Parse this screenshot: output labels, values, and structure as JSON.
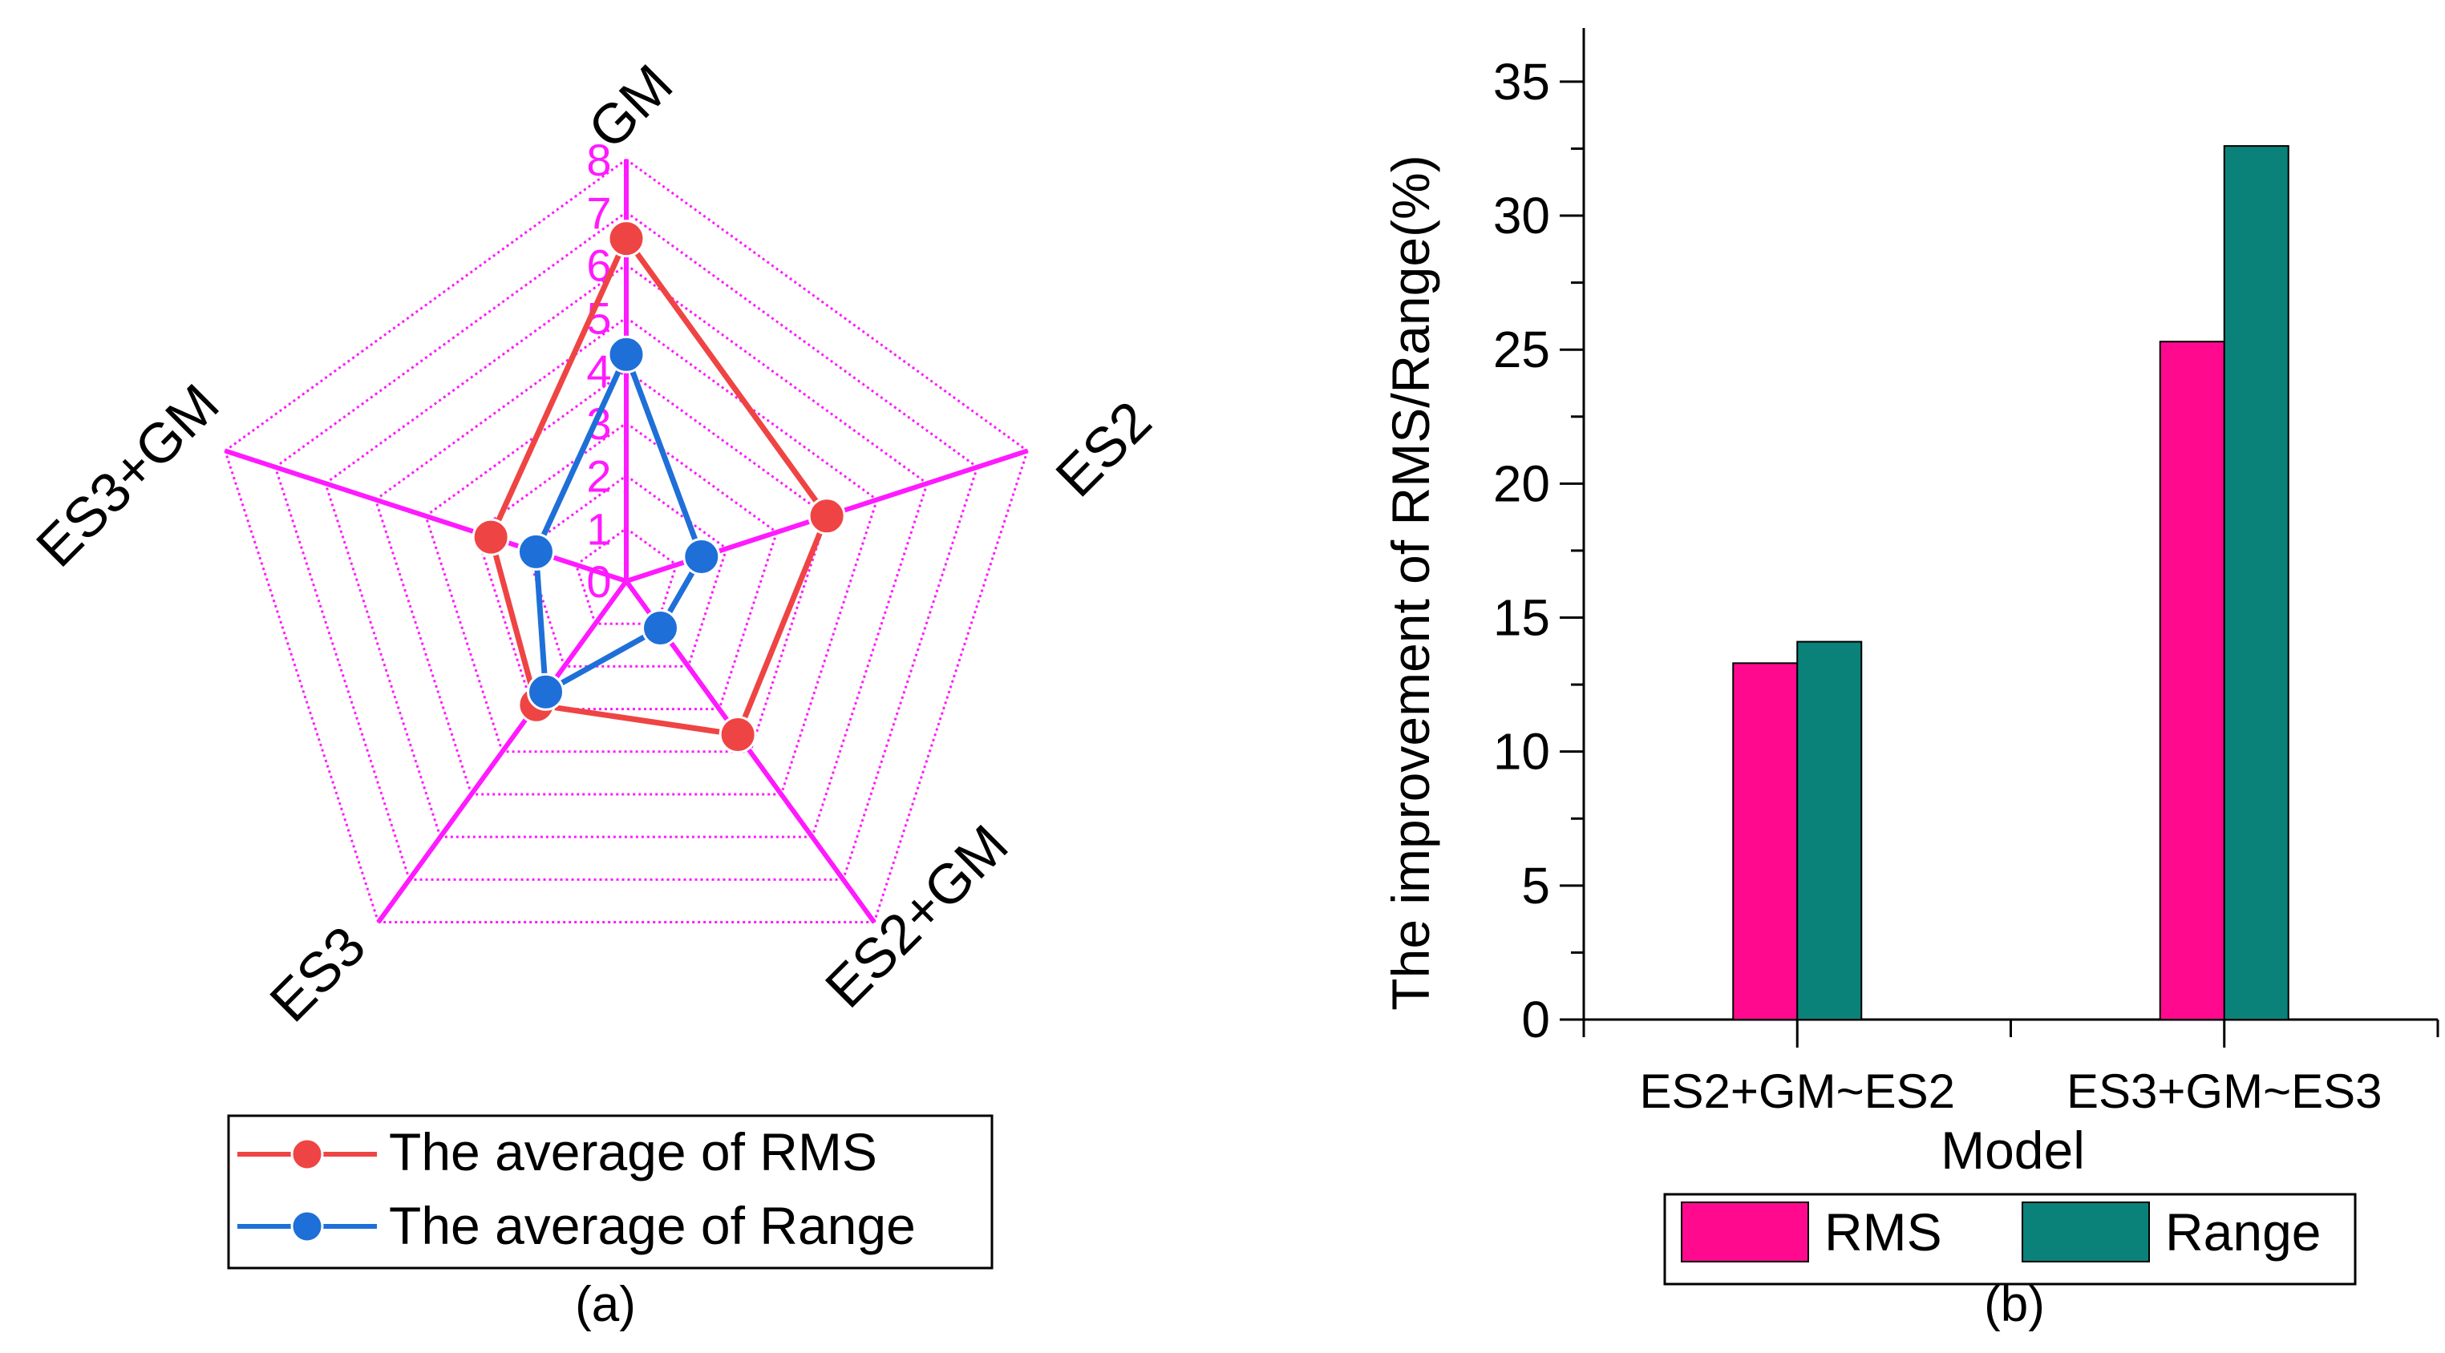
{
  "colors": {
    "radar_axis": "#ff1aff",
    "rms_series": "#ef4444",
    "range_series": "#1f6fd8",
    "bar_rms": "#ff0a8e",
    "bar_range": "#0a8279"
  },
  "chart_data": [
    {
      "panel": "(a)",
      "type": "radar",
      "axes": [
        "GM",
        "ES2",
        "ES2+GM",
        "ES3",
        "ES3+GM"
      ],
      "ticks": [
        "0",
        "1",
        "2",
        "3",
        "4",
        "5",
        "6",
        "7",
        "8"
      ],
      "range": [
        0,
        8
      ],
      "series": [
        {
          "name": "The average of RMS",
          "values": [
            6.5,
            4.0,
            3.6,
            2.9,
            2.7
          ]
        },
        {
          "name": "The average of Range",
          "values": [
            4.3,
            1.5,
            1.1,
            2.6,
            1.8
          ]
        }
      ],
      "legend_position": "bottom"
    },
    {
      "panel": "(b)",
      "type": "bar",
      "categories": [
        "ES2+GM~ES2",
        "ES3+GM~ES3"
      ],
      "series": [
        {
          "name": "RMS",
          "values": [
            13.3,
            25.3
          ]
        },
        {
          "name": "Range",
          "values": [
            14.1,
            32.6
          ]
        }
      ],
      "xlabel": "Model",
      "ylabel": "The improvement of RMS/Range(%)",
      "ylim": [
        0,
        37
      ],
      "yticks": [
        "0",
        "5",
        "10",
        "15",
        "20",
        "25",
        "30",
        "35"
      ],
      "legend_position": "bottom"
    }
  ]
}
